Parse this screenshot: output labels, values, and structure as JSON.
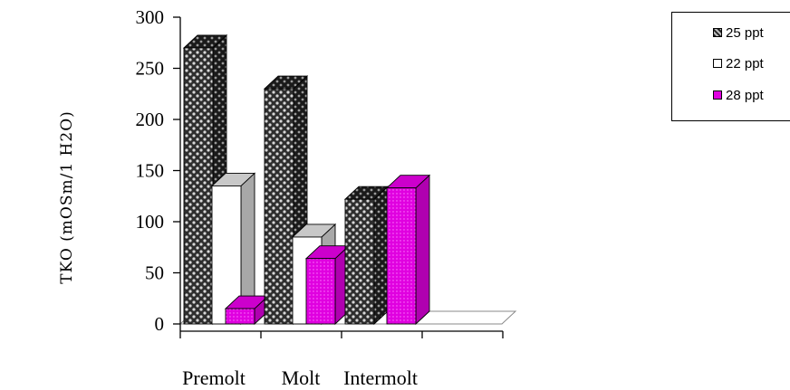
{
  "chart_data": {
    "type": "bar",
    "categories": [
      "Premolt",
      "Molt",
      "Intermolt"
    ],
    "series": [
      {
        "name": "25 ppt",
        "values": [
          270,
          230,
          122
        ],
        "color": "#3a3a3a",
        "pattern": "checkered"
      },
      {
        "name": "22 ppt",
        "values": [
          135,
          85,
          0
        ],
        "color": "#ffffff"
      },
      {
        "name": "28 ppt",
        "values": [
          15,
          64,
          133
        ],
        "color": "#e000e0"
      }
    ],
    "title": "",
    "xlabel": "",
    "ylabel": "TKO (mOSm/1 H2O)",
    "ylim": [
      0,
      300
    ],
    "yticks": [
      "0",
      "50",
      "100",
      "150",
      "200",
      "250",
      "300"
    ],
    "legend_position": "top-right",
    "style": "3d-bars"
  }
}
